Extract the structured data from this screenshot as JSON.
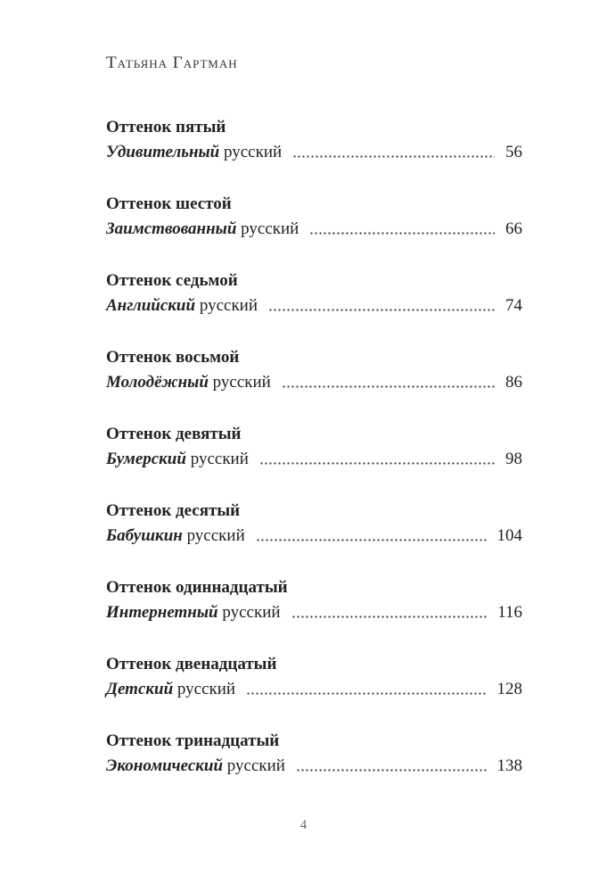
{
  "header": {
    "author": "Татьяна Гартман"
  },
  "toc": [
    {
      "heading": "Оттенок пятый",
      "emphasis": "Удивительный",
      "text": "русский",
      "page": 56
    },
    {
      "heading": "Оттенок шестой",
      "emphasis": "Заимствованный",
      "text": "русский",
      "page": 66
    },
    {
      "heading": "Оттенок седьмой",
      "emphasis": "Английский",
      "text": "русский",
      "page": 74
    },
    {
      "heading": "Оттенок восьмой",
      "emphasis": "Молодёжный",
      "text": "русский",
      "page": 86
    },
    {
      "heading": "Оттенок девятый",
      "emphasis": "Бумерский",
      "text": "русский",
      "page": 98
    },
    {
      "heading": "Оттенок десятый",
      "emphasis": "Бабушкин",
      "text": "русский",
      "page": 104
    },
    {
      "heading": "Оттенок одиннадцатый",
      "emphasis": "Интернетный",
      "text": "русский",
      "page": 116
    },
    {
      "heading": "Оттенок двенадцатый",
      "emphasis": "Детский",
      "text": "русский",
      "page": 128
    },
    {
      "heading": "Оттенок тринадцатый",
      "emphasis": "Экономический",
      "text": "русский",
      "page": 138
    }
  ],
  "footer": {
    "page_number": 4
  }
}
